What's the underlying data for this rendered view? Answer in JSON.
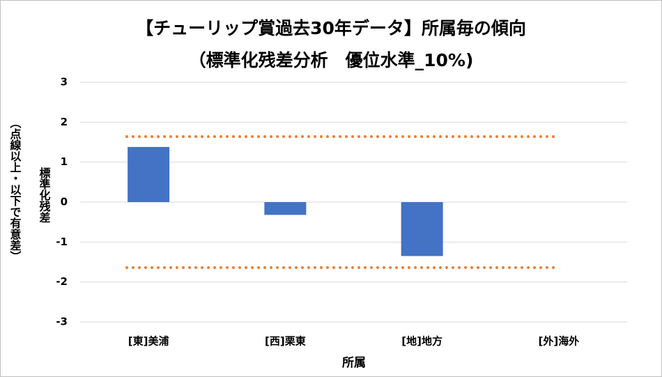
{
  "chart_data": {
    "type": "bar",
    "title": "【チューリップ賞過去30年データ】所属毎の傾向",
    "subtitle": "（標準化残差分析　優位水準_10%)",
    "x_label": "所属",
    "y_label": "標準化残差",
    "y_label_note": "（点線以上・以下で有意差）",
    "categories": [
      "[東]美浦",
      "[西]栗東",
      "[地]地方",
      "[外]海外"
    ],
    "values": [
      1.38,
      -0.32,
      -1.35,
      null
    ],
    "color": "#4472c4",
    "reference_lines": [
      1.64,
      -1.64
    ],
    "reference_color": "#ed7d31",
    "ylim": [
      -3,
      3
    ],
    "yticks": [
      -3,
      -2,
      -1,
      0,
      1,
      2,
      3
    ],
    "grid": true
  }
}
